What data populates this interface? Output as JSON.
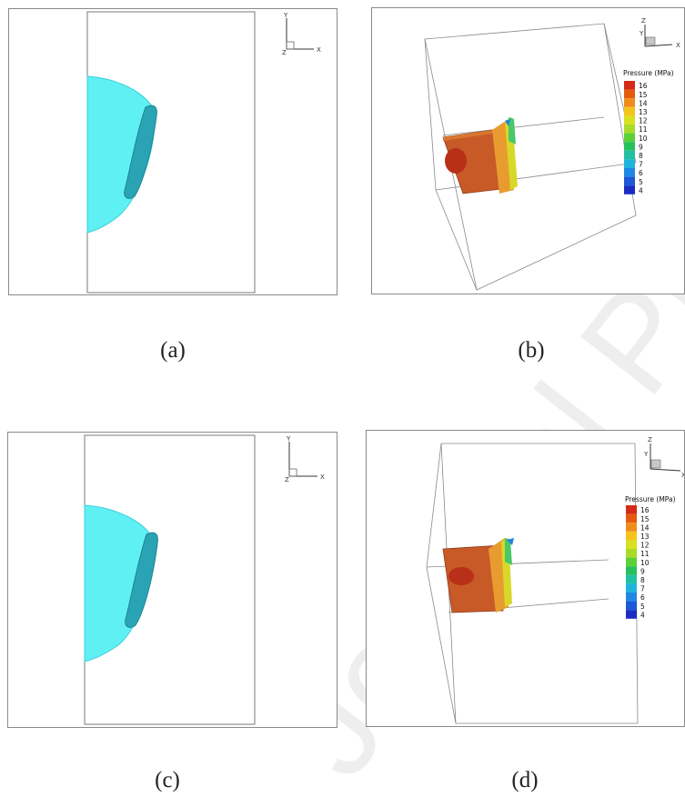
{
  "panels": [
    {
      "caption": "(a)",
      "axes": {
        "vertical": "Y",
        "horizontal": "X",
        "depth": "Z"
      }
    },
    {
      "caption": "(b)",
      "axes": {
        "vertical": "Z",
        "horizontal": "X",
        "depth": "Y"
      },
      "legend": {
        "title": "Pressure (MPa)",
        "ticks": [
          "16",
          "15",
          "14",
          "13",
          "12",
          "11",
          "10",
          "9",
          "8",
          "7",
          "6",
          "5",
          "4"
        ]
      }
    },
    {
      "caption": "(c)",
      "axes": {
        "vertical": "Y",
        "horizontal": "X",
        "depth": "Z"
      }
    },
    {
      "caption": "(d)",
      "axes": {
        "vertical": "Z",
        "horizontal": "X",
        "depth": "Y"
      },
      "legend": {
        "title": "Pressure (MPa)",
        "ticks": [
          "16",
          "15",
          "14",
          "13",
          "12",
          "11",
          "10",
          "9",
          "8",
          "7",
          "6",
          "5",
          "4"
        ]
      }
    }
  ],
  "legend_colors": [
    "#d42a18",
    "#e65a10",
    "#f08c1c",
    "#f4c41c",
    "#d8e020",
    "#a8dc28",
    "#5cd038",
    "#28c05c",
    "#20c0a4",
    "#20b4dc",
    "#2088e4",
    "#1c58d8",
    "#1a2cc4"
  ],
  "watermark": "Journal Pre-proof"
}
